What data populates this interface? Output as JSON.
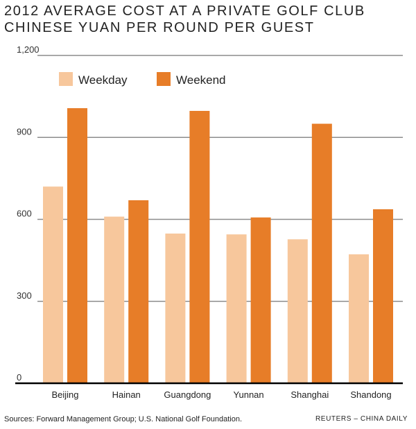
{
  "title_line1": "2012 AVERAGE COST AT A PRIVATE GOLF CLUB",
  "title_line2": "CHINESE YUAN PER ROUND PER GUEST",
  "source": "Sources: Forward Management Group; U.S. National Golf Foundation.",
  "credit": "REUTERS – CHINA DAILY",
  "colors": {
    "weekday": "#f7c79c",
    "weekend": "#e77d28",
    "grid": "#8c8c8c",
    "axis": "#000000"
  },
  "chart_data": {
    "type": "bar",
    "categories": [
      "Beijing",
      "Hainan",
      "Guangdong",
      "Yunnan",
      "Shanghai",
      "Shandong"
    ],
    "series": [
      {
        "name": "Weekday",
        "values": [
          720,
          610,
          548,
          545,
          527,
          472
        ]
      },
      {
        "name": "Weekend",
        "values": [
          1007,
          670,
          997,
          607,
          950,
          637
        ]
      }
    ],
    "yticks": [
      "0",
      "300",
      "600",
      "900",
      "1,200"
    ],
    "ylim": [
      0,
      1200
    ],
    "legend": "top-left",
    "grid": true
  }
}
